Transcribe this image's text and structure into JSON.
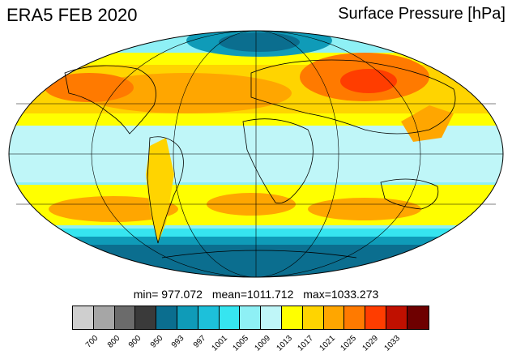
{
  "header": {
    "left_title": "ERA5 FEB 2020",
    "right_title": "Surface Pressure [hPa]"
  },
  "stats": {
    "min_label": "min= 977.072",
    "mean_label": "mean=1011.712",
    "max_label": "max=1033.273"
  },
  "colorbar": {
    "colors": [
      "#cfcfcf",
      "#a6a6a6",
      "#6b6b6b",
      "#3a3a3a",
      "#0b6e8f",
      "#0f9bb8",
      "#1dc0da",
      "#36e5f0",
      "#8ef0f5",
      "#bff6f8",
      "#ffff00",
      "#ffd400",
      "#ffa600",
      "#ff7a00",
      "#ff3d00",
      "#c01000",
      "#6e0000"
    ],
    "tick_labels": [
      "700",
      "800",
      "900",
      "950",
      "993",
      "997",
      "1001",
      "1005",
      "1009",
      "1013",
      "1017",
      "1021",
      "1025",
      "1029",
      "1033"
    ]
  },
  "map": {
    "projection": "mollweide",
    "palette": [
      "#8ef0f5",
      "#bff6f8",
      "#ffff00",
      "#ffd400",
      "#ffa600",
      "#ff7a00",
      "#ff3d00",
      "#0f9bb8",
      "#0b6e8f"
    ]
  }
}
